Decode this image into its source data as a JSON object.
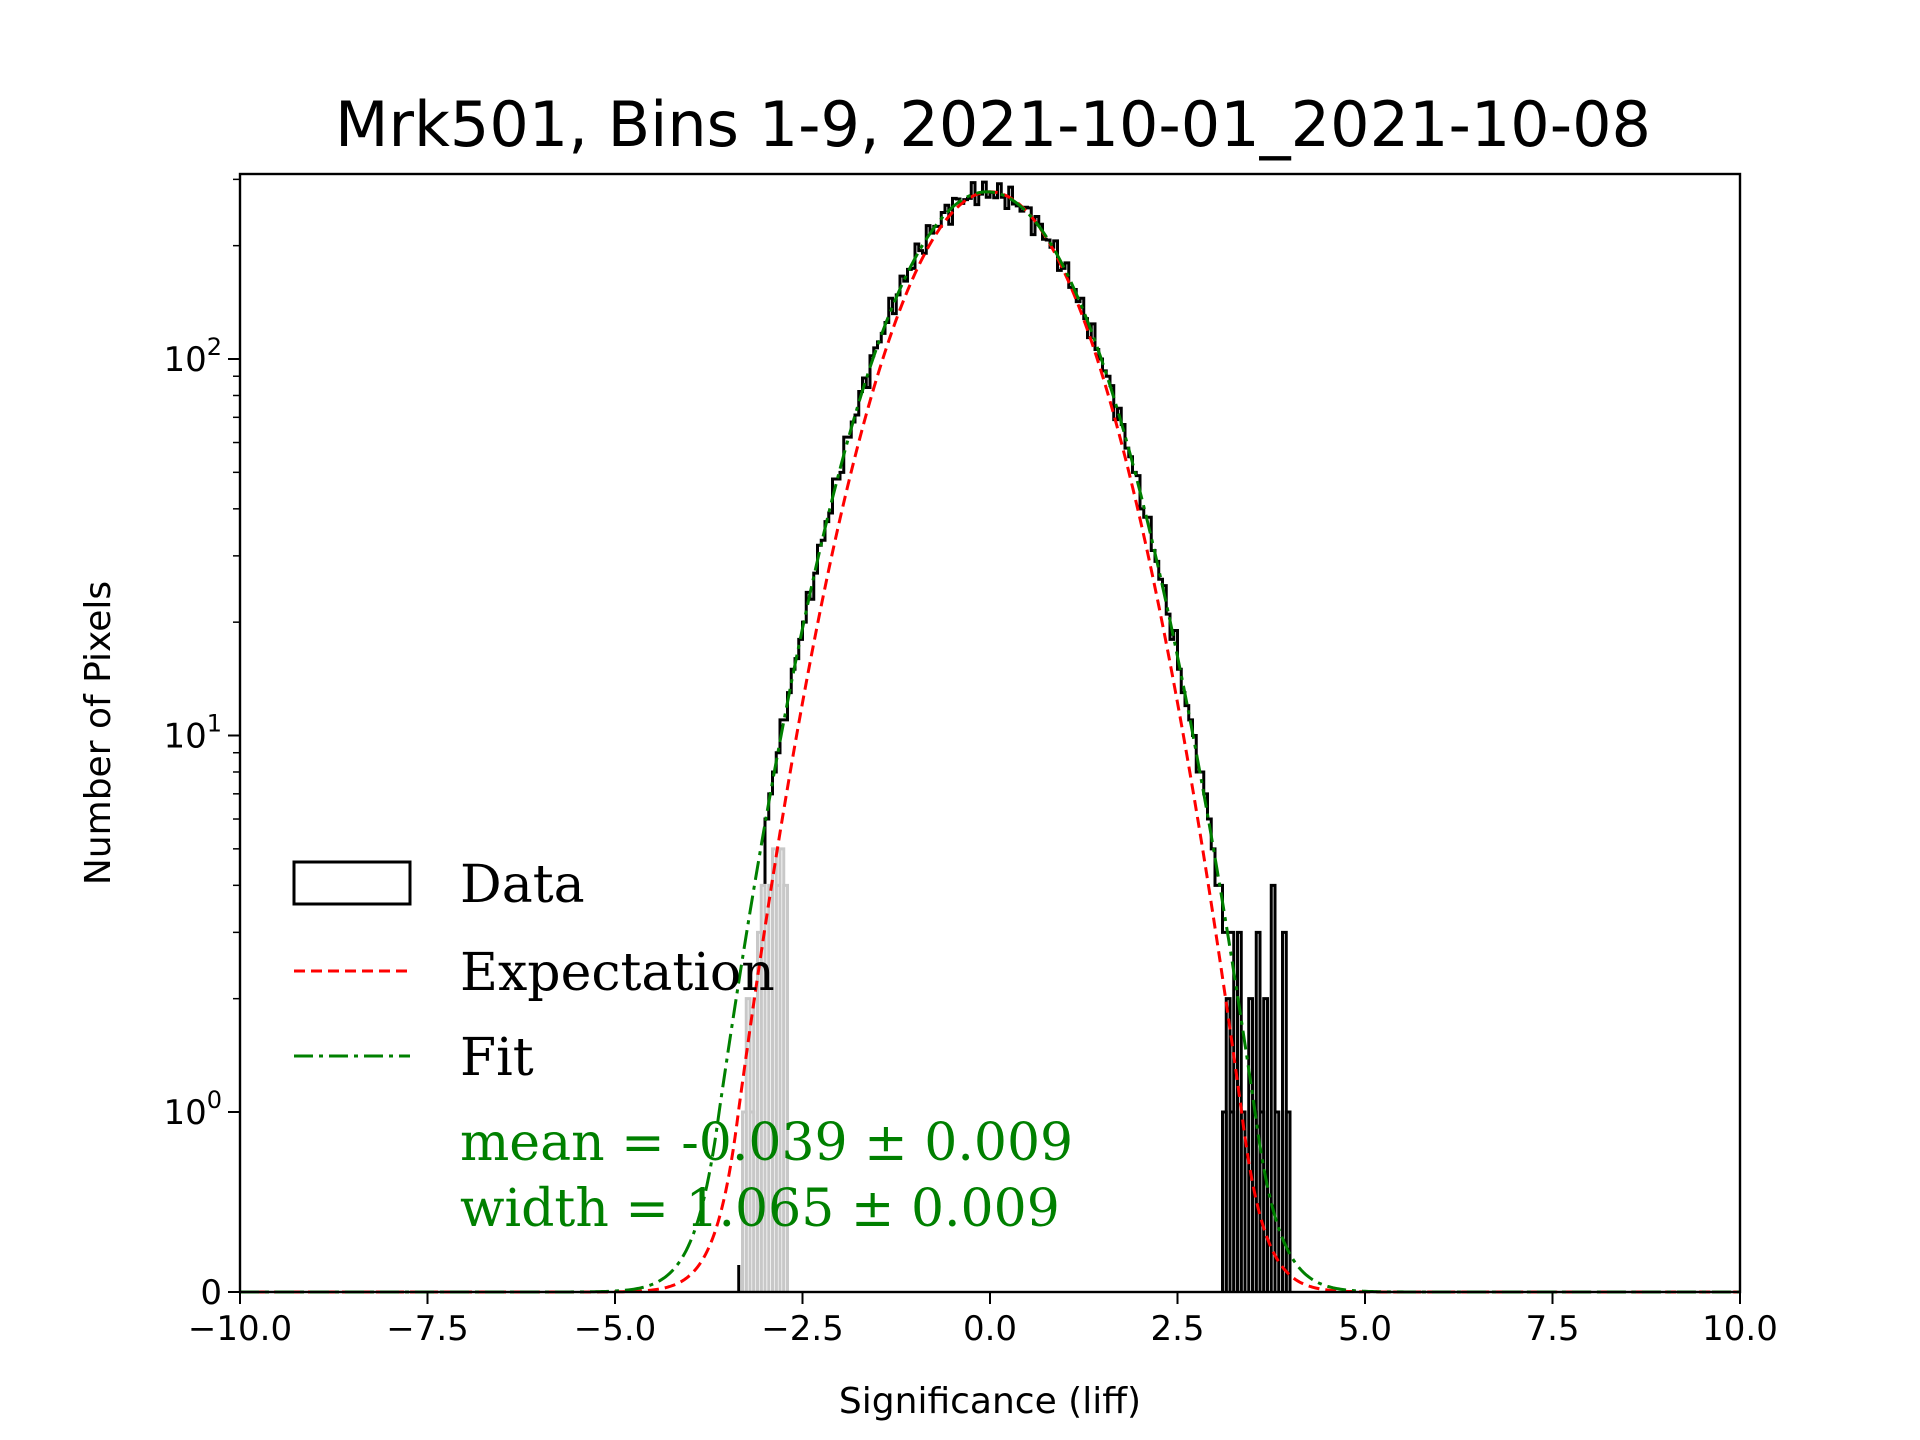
{
  "chart_data": {
    "type": "histogram",
    "title": "Mrk501, Bins 1-9, 2021-10-01_2021-10-08",
    "xlabel": "Significance (liff)",
    "ylabel": "Number of Pixels",
    "xlim": [
      -10,
      10
    ],
    "yscale": "symlog",
    "y_linthresh": 1,
    "ylim_top": 310,
    "x_ticks": [
      -10,
      -7.5,
      -5,
      -2.5,
      0,
      2.5,
      5,
      7.5,
      10
    ],
    "x_tick_labels": [
      "−10.0",
      "−7.5",
      "−5.0",
      "−2.5",
      "0.0",
      "2.5",
      "5.0",
      "7.5",
      "10.0"
    ],
    "y_ticks": [
      {
        "value": 0,
        "base": "0",
        "exp": ""
      },
      {
        "value": 1,
        "base": "10",
        "exp": "0"
      },
      {
        "value": 10,
        "base": "10",
        "exp": "1"
      },
      {
        "value": 100,
        "base": "10",
        "exp": "2"
      }
    ],
    "bin_width": 0.05,
    "data_amplitude": 278,
    "data_mean": -0.039,
    "data_width": 1.065,
    "data_range": [
      -3.0,
      3.2
    ],
    "sparse_positive_bins": [
      {
        "x": 3.1,
        "count": 1
      },
      {
        "x": 3.15,
        "count": 2
      },
      {
        "x": 3.2,
        "count": 1
      },
      {
        "x": 3.3,
        "count": 3
      },
      {
        "x": 3.35,
        "count": 1
      },
      {
        "x": 3.45,
        "count": 2
      },
      {
        "x": 3.5,
        "count": 1
      },
      {
        "x": 3.55,
        "count": 3
      },
      {
        "x": 3.6,
        "count": 1
      },
      {
        "x": 3.65,
        "count": 2
      },
      {
        "x": 3.75,
        "count": 4
      },
      {
        "x": 3.8,
        "count": 1
      },
      {
        "x": 3.9,
        "count": 3
      },
      {
        "x": 3.95,
        "count": 1
      }
    ],
    "sparse_negative_bins": [
      {
        "x": -3.35,
        "count": 0.15
      }
    ],
    "excluded_bins": [
      {
        "x": -3.3,
        "count": 1
      },
      {
        "x": -3.25,
        "count": 2
      },
      {
        "x": -3.2,
        "count": 1
      },
      {
        "x": -3.15,
        "count": 2
      },
      {
        "x": -3.1,
        "count": 3
      },
      {
        "x": -3.05,
        "count": 4
      },
      {
        "x": -2.95,
        "count": 4
      },
      {
        "x": -2.9,
        "count": 5
      },
      {
        "x": -2.85,
        "count": 4
      },
      {
        "x": -2.8,
        "count": 5
      },
      {
        "x": -2.75,
        "count": 4
      }
    ],
    "series": [
      {
        "name": "Data",
        "kind": "step-histogram",
        "color": "#000000"
      },
      {
        "name": "Expectation",
        "kind": "gaussian",
        "mean": 0.0,
        "sigma": 1.0,
        "amplitude": 278,
        "color": "#ff0000",
        "dash": "dashed"
      },
      {
        "name": "Fit",
        "kind": "gaussian",
        "mean": -0.039,
        "sigma": 1.065,
        "amplitude": 278,
        "color": "#008000",
        "dash": "dash-dot"
      }
    ],
    "excluded_color": "#c8c8c8",
    "legend": {
      "position": "lower-left",
      "entries": [
        "Data",
        "Expectation",
        "Fit"
      ]
    },
    "annotations": {
      "mean_text": "mean = -0.039 ± 0.009",
      "width_text": "width = 1.065 ± 0.009",
      "color": "#008000"
    }
  }
}
